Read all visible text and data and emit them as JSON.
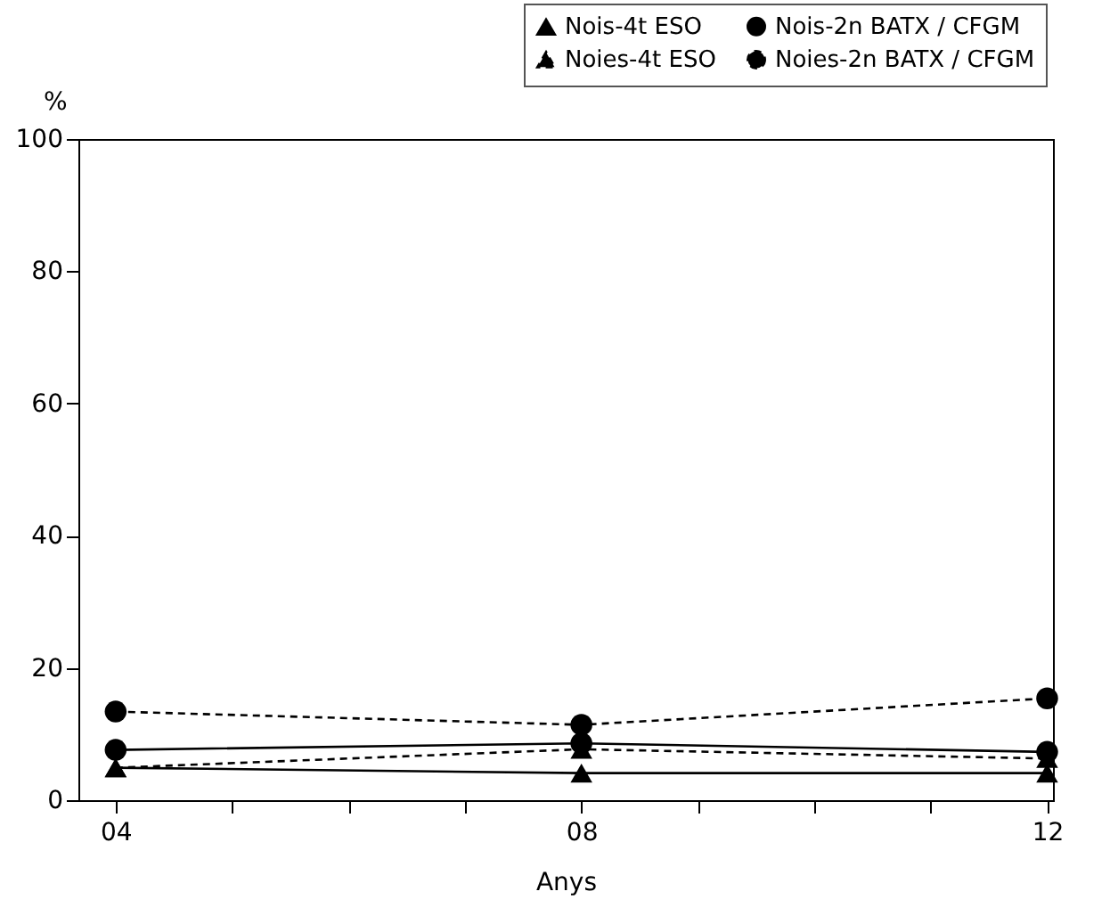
{
  "chart_data": {
    "type": "line",
    "ylabel": "%",
    "xlabel": "Anys",
    "x": [
      4,
      8,
      12
    ],
    "xlim": [
      3.68,
      12.05
    ],
    "xticks": [
      {
        "value": 4,
        "label": "04"
      },
      {
        "value": 5,
        "label": null
      },
      {
        "value": 6,
        "label": null
      },
      {
        "value": 7,
        "label": null
      },
      {
        "value": 8,
        "label": "08"
      },
      {
        "value": 9,
        "label": null
      },
      {
        "value": 10,
        "label": null
      },
      {
        "value": 11,
        "label": null
      },
      {
        "value": 12,
        "label": "12"
      }
    ],
    "ylim": [
      0,
      100
    ],
    "yticks": [
      0,
      20,
      40,
      60,
      80,
      100
    ],
    "grid": false,
    "legend": "top right",
    "series": [
      {
        "name": "Nois-4t ESO",
        "color": "#000000",
        "marker": "triangle",
        "line_style": "solid",
        "values": [
          4.9,
          4.1,
          4.1
        ]
      },
      {
        "name": "Nois-2n BATX / CFGM",
        "color": "#000000",
        "marker": "circle",
        "line_style": "solid",
        "values": [
          7.6,
          8.6,
          7.3
        ]
      },
      {
        "name": "Noies-4t ESO",
        "color": "#000000",
        "marker": "triangle",
        "line_style": "dashed",
        "values": [
          4.9,
          7.7,
          6.3
        ]
      },
      {
        "name": "Noies-2n BATX / CFGM",
        "color": "#000000",
        "marker": "circle",
        "line_style": "dashed",
        "values": [
          13.4,
          11.4,
          15.4
        ]
      }
    ]
  }
}
